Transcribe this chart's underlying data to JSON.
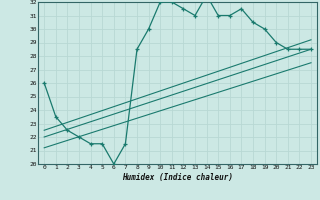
{
  "bg_color": "#cce8e4",
  "grid_color": "#b8d8d4",
  "line_color": "#1a7a6e",
  "xlabel": "Humidex (Indice chaleur)",
  "ylim": [
    20,
    32
  ],
  "xlim": [
    -0.5,
    23.5
  ],
  "yticks": [
    20,
    21,
    22,
    23,
    24,
    25,
    26,
    27,
    28,
    29,
    30,
    31,
    32
  ],
  "xticks": [
    0,
    1,
    2,
    3,
    4,
    5,
    6,
    7,
    8,
    9,
    10,
    11,
    12,
    13,
    14,
    15,
    16,
    17,
    18,
    19,
    20,
    21,
    22,
    23
  ],
  "main_x": [
    0,
    1,
    2,
    3,
    4,
    5,
    6,
    7,
    8,
    9,
    10,
    11,
    12,
    13,
    14,
    15,
    16,
    17,
    18,
    19,
    20,
    21,
    22,
    23
  ],
  "main_y": [
    26.0,
    23.5,
    22.5,
    22.0,
    21.5,
    21.5,
    20.0,
    21.5,
    28.5,
    30.0,
    32.0,
    32.0,
    31.5,
    31.0,
    32.5,
    31.0,
    31.0,
    31.5,
    30.5,
    30.0,
    29.0,
    28.5,
    28.5,
    28.5
  ],
  "line1_x": [
    0,
    23
  ],
  "line1_y": [
    22.5,
    29.2
  ],
  "line2_x": [
    0,
    23
  ],
  "line2_y": [
    22.0,
    28.5
  ],
  "line3_x": [
    0,
    23
  ],
  "line3_y": [
    21.2,
    27.5
  ]
}
